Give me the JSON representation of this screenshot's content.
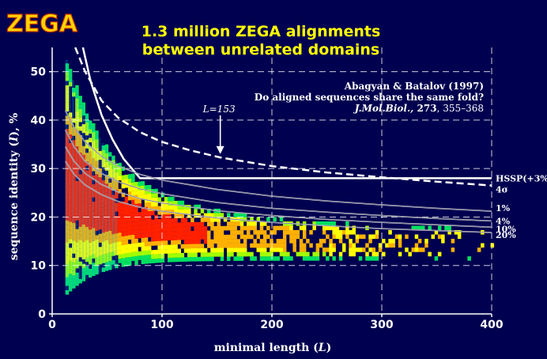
{
  "logo_text": "ZEGA",
  "chart_data": {
    "type": "scatter",
    "title": [
      "1.3 million ZEGA alignments",
      "between unrelated domains"
    ],
    "xlabel": "minimal length (",
    "xlabel_var": "L",
    "xlabel_end": ")",
    "ylabel": "sequence identity (",
    "ylabel_var": "I",
    "ylabel_end": "), %",
    "xlim": [
      0,
      400
    ],
    "ylim": [
      0,
      55
    ],
    "xticks": [
      0,
      100,
      200,
      300,
      400
    ],
    "yticks": [
      0,
      10,
      20,
      30,
      40,
      50
    ],
    "grid": true,
    "reference": {
      "authors": "Abagyan & Batalov (1997)",
      "question": "Do aligned sequences share the same fold?",
      "journal": "J.Mol.Biol.,",
      "volume": "273",
      "pages": ", 355–368"
    },
    "annotation": {
      "text": "L=153",
      "x": 153,
      "arrow_from_y": 41,
      "arrow_to_y": 33
    },
    "density_colors": [
      "#00b0ff",
      "#00e060",
      "#a0ff00",
      "#ffff00",
      "#ffb000",
      "#ff2000"
    ],
    "curves": [
      {
        "name": "HSSP(+3%)",
        "points": [
          [
            28,
            55
          ],
          [
            35,
            48
          ],
          [
            45,
            41
          ],
          [
            55,
            36
          ],
          [
            65,
            32
          ],
          [
            80,
            28
          ],
          [
            400,
            28
          ]
        ]
      },
      {
        "name": "4σ",
        "points": [
          [
            21,
            55
          ],
          [
            30,
            50
          ],
          [
            45,
            44
          ],
          [
            60,
            40.5
          ],
          [
            80,
            37.5
          ],
          [
            100,
            35.5
          ],
          [
            125,
            33.8
          ],
          [
            153,
            32.3
          ],
          [
            200,
            30.5
          ],
          [
            250,
            29.2
          ],
          [
            300,
            28.2
          ],
          [
            350,
            27.3
          ],
          [
            400,
            26.5
          ]
        ]
      },
      {
        "name": "1%",
        "points": [
          [
            12,
            42
          ],
          [
            20,
            38.5
          ],
          [
            30,
            35.5
          ],
          [
            45,
            32.5
          ],
          [
            60,
            30.5
          ],
          [
            80,
            28.8
          ],
          [
            100,
            27.6
          ],
          [
            150,
            25.7
          ],
          [
            200,
            24.3
          ],
          [
            250,
            23.3
          ],
          [
            300,
            22.5
          ],
          [
            350,
            21.8
          ],
          [
            400,
            21.2
          ]
        ]
      },
      {
        "name": "4%",
        "points": [
          [
            12,
            38
          ],
          [
            20,
            34.5
          ],
          [
            30,
            31.5
          ],
          [
            45,
            29
          ],
          [
            60,
            27.3
          ],
          [
            80,
            25.8
          ],
          [
            100,
            24.8
          ],
          [
            150,
            23
          ],
          [
            200,
            21.8
          ],
          [
            250,
            21
          ],
          [
            300,
            20.3
          ],
          [
            350,
            19.7
          ],
          [
            400,
            19.2
          ]
        ]
      },
      {
        "name": "10%",
        "points": [
          [
            12,
            34.5
          ],
          [
            20,
            31.5
          ],
          [
            30,
            29
          ],
          [
            45,
            26.7
          ],
          [
            60,
            25.2
          ],
          [
            80,
            23.8
          ],
          [
            100,
            22.9
          ],
          [
            150,
            21.3
          ],
          [
            200,
            20.3
          ],
          [
            250,
            19.5
          ],
          [
            300,
            18.9
          ],
          [
            350,
            18.4
          ],
          [
            400,
            17.9
          ]
        ]
      },
      {
        "name": "20%",
        "points": [
          [
            12,
            31.5
          ],
          [
            20,
            28.8
          ],
          [
            30,
            26.6
          ],
          [
            45,
            24.6
          ],
          [
            60,
            23.2
          ],
          [
            80,
            22
          ],
          [
            100,
            21.2
          ],
          [
            150,
            19.8
          ],
          [
            200,
            18.9
          ],
          [
            250,
            18.2
          ],
          [
            300,
            17.6
          ],
          [
            350,
            17.2
          ],
          [
            400,
            16.8
          ]
        ]
      }
    ]
  }
}
